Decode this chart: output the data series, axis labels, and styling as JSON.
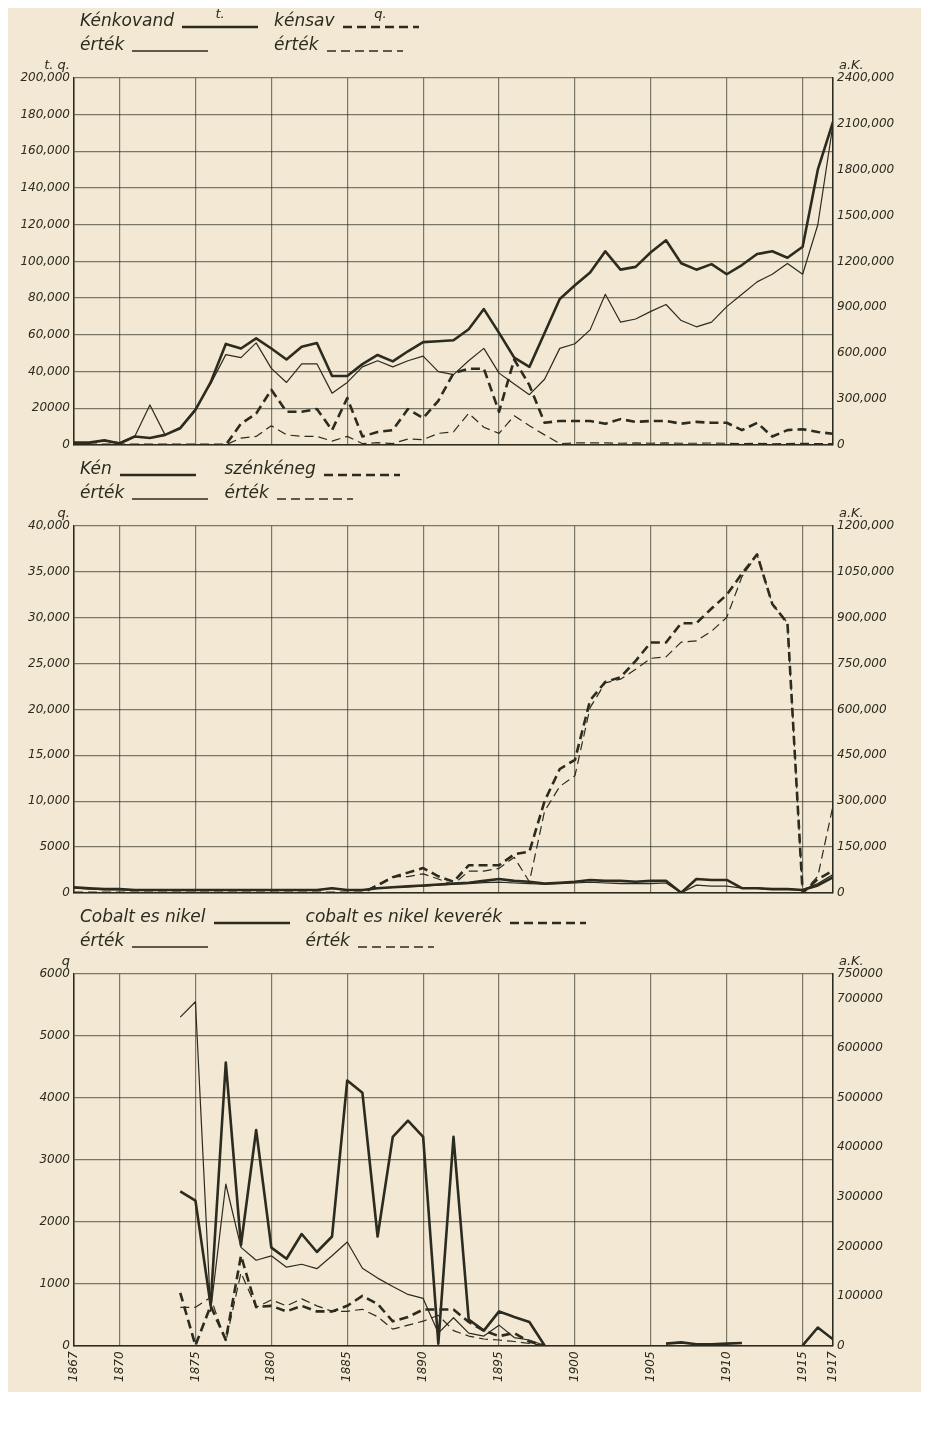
{
  "chart_data": [
    {
      "type": "line",
      "ylabel": "t. q.",
      "y2label": "a.K.",
      "legend": "top left",
      "grid": true,
      "tick_labels": "y",
      "annotations": [
        "t.",
        "q."
      ],
      "x": [
        1867,
        1868,
        1869,
        1870,
        1871,
        1872,
        1873,
        1874,
        1875,
        1876,
        1877,
        1878,
        1879,
        1880,
        1881,
        1882,
        1883,
        1884,
        1885,
        1886,
        1887,
        1888,
        1889,
        1890,
        1891,
        1892,
        1893,
        1894,
        1895,
        1896,
        1897,
        1898,
        1899,
        1900,
        1901,
        1902,
        1903,
        1904,
        1905,
        1906,
        1907,
        1908,
        1909,
        1910,
        1911,
        1912,
        1913,
        1914,
        1915,
        1916,
        1917
      ],
      "xlim": [
        1867,
        1917
      ],
      "xticks": [
        1867,
        1870,
        1875,
        1880,
        1885,
        1890,
        1895,
        1900,
        1905,
        1910,
        1915,
        1917
      ],
      "ylim": [
        0,
        200000
      ],
      "yticks": [
        0,
        20000,
        {
          "value": 40000,
          "label": "40,000"
        },
        {
          "value": 60000,
          "label": "60,000"
        },
        {
          "value": 80000,
          "label": "80,000"
        },
        {
          "value": 100000,
          "label": "100,000"
        },
        {
          "value": 120000,
          "label": "120,000"
        },
        {
          "value": 140000,
          "label": "140,000"
        },
        {
          "value": 160000,
          "label": "160,000"
        },
        {
          "value": 180000,
          "label": "180,000"
        },
        {
          "value": 200000,
          "label": "200,000"
        }
      ],
      "y2lim": [
        0,
        2400000
      ],
      "y2ticks": [
        0,
        {
          "value": 300000,
          "label": "300,000"
        },
        {
          "value": 600000,
          "label": "600,000"
        },
        {
          "value": 900000,
          "label": "900,000"
        },
        {
          "value": 1200000,
          "label": "1200,000"
        },
        {
          "value": 1500000,
          "label": "1500,000"
        },
        {
          "value": 1800000,
          "label": "1800,000"
        },
        {
          "value": 2100000,
          "label": "2100,000"
        },
        {
          "value": 2400000,
          "label": "2400,000"
        }
      ],
      "series": [
        {
          "name": "Kénkovand",
          "color": "#2b2b1f",
          "line_style": "solid",
          "values": [
            1200,
            1200,
            2400,
            700,
            4500,
            3700,
            5400,
            9000,
            19000,
            34000,
            55000,
            52500,
            58000,
            52500,
            46500,
            53500,
            55500,
            37500,
            37500,
            44000,
            49000,
            45500,
            51000,
            56000,
            56500,
            57000,
            63000,
            74000,
            61000,
            47500,
            42500,
            61000,
            79500,
            87000,
            94000,
            105500,
            95500,
            97000,
            105000,
            111500,
            99000,
            95500,
            98500,
            93000,
            98000,
            104000,
            105500,
            102000,
            108000,
            150000,
            176000
          ]
        },
        {
          "name": "érték",
          "color": "#2b2b1f",
          "line_style": "solid",
          "axis": "y2",
          "values": [
            14000,
            14000,
            28000,
            14000,
            55000,
            261000,
            65000,
            115000,
            237000,
            398000,
            590000,
            570000,
            667000,
            500000,
            408000,
            530000,
            530000,
            338000,
            408000,
            510000,
            550000,
            510000,
            550000,
            580000,
            479000,
            459000,
            550000,
            631000,
            469000,
            398000,
            328000,
            429000,
            631000,
            661000,
            752000,
            985000,
            803000,
            823000,
            873000,
            918000,
            813000,
            772000,
            803000,
            904000,
            985000,
            1066000,
            1116000,
            1187000,
            1116000,
            1440000,
            2097000
          ]
        },
        {
          "name": "kénsav",
          "color": "#2b2b1f",
          "line_style": "dashed",
          "values": [
            0,
            0,
            0,
            0,
            0,
            0,
            0,
            0,
            0,
            0,
            0,
            11500,
            17000,
            30000,
            18000,
            18000,
            19500,
            8000,
            25500,
            4500,
            7000,
            8000,
            19500,
            14500,
            24000,
            39000,
            41500,
            41500,
            18000,
            46500,
            32500,
            12000,
            13000,
            13000,
            13000,
            11500,
            14000,
            12500,
            13000,
            13000,
            11500,
            12500,
            12000,
            12000,
            8000,
            12000,
            4500,
            8000,
            8500,
            7000,
            6000
          ]
        },
        {
          "name": "érték",
          "color": "#2b2b1f",
          "line_style": "dashed",
          "axis": "y2",
          "values": [
            0,
            0,
            0,
            0,
            0,
            0,
            0,
            0,
            0,
            0,
            0,
            44000,
            55000,
            125000,
            65000,
            55000,
            55000,
            24000,
            55000,
            8000,
            14000,
            8000,
            38000,
            34000,
            75000,
            85000,
            206000,
            115000,
            75000,
            190000,
            125000,
            65000,
            8000,
            12000,
            12000,
            12000,
            10000,
            12000,
            10000,
            12000,
            10000,
            10000,
            12000,
            10000,
            8000,
            10000,
            6000,
            8000,
            10000,
            8000,
            8000
          ]
        }
      ]
    },
    {
      "type": "line",
      "ylabel": "q.",
      "y2label": "a.K.",
      "legend": "top left",
      "grid": true,
      "tick_labels": "y",
      "x": [
        1867,
        1868,
        1869,
        1870,
        1871,
        1872,
        1873,
        1874,
        1875,
        1876,
        1877,
        1878,
        1879,
        1880,
        1881,
        1882,
        1883,
        1884,
        1885,
        1886,
        1887,
        1888,
        1889,
        1890,
        1891,
        1892,
        1893,
        1894,
        1895,
        1896,
        1897,
        1898,
        1899,
        1900,
        1901,
        1902,
        1903,
        1904,
        1905,
        1906,
        1907,
        1908,
        1909,
        1910,
        1911,
        1912,
        1913,
        1914,
        1915,
        1916,
        1917
      ],
      "xlim": [
        1867,
        1917
      ],
      "xticks": [
        1867,
        1870,
        1875,
        1880,
        1885,
        1890,
        1895,
        1900,
        1905,
        1910,
        1915,
        1917
      ],
      "ylim": [
        0,
        40000
      ],
      "yticks": [
        0,
        5000,
        {
          "value": 10000,
          "label": "10,000"
        },
        {
          "value": 15000,
          "label": "15,000"
        },
        {
          "value": 20000,
          "label": "20,000"
        },
        {
          "value": 25000,
          "label": "25,000"
        },
        {
          "value": 30000,
          "label": "30,000"
        },
        {
          "value": 35000,
          "label": "35,000"
        },
        {
          "value": 40000,
          "label": "40,000"
        }
      ],
      "y2lim": [
        0,
        1200000
      ],
      "y2ticks": [
        0,
        {
          "value": 150000,
          "label": "150,000"
        },
        {
          "value": 300000,
          "label": "300,000"
        },
        {
          "value": 450000,
          "label": "450,000"
        },
        {
          "value": 600000,
          "label": "600,000"
        },
        {
          "value": 750000,
          "label": "750,000"
        },
        {
          "value": 900000,
          "label": "900,000"
        },
        {
          "value": 1050000,
          "label": "1050,000"
        },
        {
          "value": 1200000,
          "label": "1200,000"
        }
      ],
      "series": [
        {
          "name": "Kén",
          "color": "#2b2b1f",
          "line_style": "solid",
          "values": [
            600,
            500,
            400,
            400,
            300,
            300,
            300,
            300,
            300,
            300,
            300,
            300,
            300,
            300,
            300,
            300,
            300,
            500,
            300,
            300,
            500,
            600,
            700,
            800,
            900,
            1000,
            1100,
            1300,
            1500,
            1300,
            1200,
            1000,
            1100,
            1200,
            1400,
            1300,
            1300,
            1200,
            1300,
            1300,
            0,
            1500,
            1400,
            1400,
            500,
            500,
            400,
            400,
            300,
            800,
            1700
          ]
        },
        {
          "name": "érték",
          "color": "#2b2b1f",
          "line_style": "solid",
          "axis": "y2",
          "values": [
            15000,
            12000,
            10000,
            10000,
            8000,
            8000,
            8000,
            8000,
            8000,
            8000,
            8000,
            8000,
            8000,
            8000,
            8000,
            8000,
            8000,
            15000,
            8000,
            8000,
            15000,
            18000,
            20000,
            22000,
            25000,
            28000,
            30000,
            33000,
            35000,
            32000,
            30000,
            28000,
            30000,
            32000,
            35000,
            32000,
            30000,
            30000,
            30000,
            32000,
            0,
            25000,
            22000,
            22000,
            15000,
            15000,
            12000,
            12000,
            10000,
            30000,
            60000
          ]
        },
        {
          "name": "szénkéneg",
          "color": "#2b2b1f",
          "line_style": "dashed",
          "values": [
            0,
            0,
            0,
            0,
            0,
            0,
            0,
            0,
            0,
            0,
            0,
            0,
            0,
            0,
            0,
            0,
            0,
            0,
            0,
            0,
            800,
            1700,
            2200,
            2700,
            1800,
            1200,
            3000,
            3000,
            3000,
            4200,
            4500,
            10000,
            13500,
            14500,
            21000,
            23000,
            23500,
            25300,
            27300,
            27300,
            29400,
            29400,
            31000,
            32500,
            34800,
            36900,
            31500,
            29400,
            0,
            1500,
            2400
          ]
        },
        {
          "name": "érték",
          "color": "#2b2b1f",
          "line_style": "dashed",
          "axis": "y2",
          "values": [
            0,
            0,
            0,
            0,
            0,
            0,
            0,
            0,
            0,
            0,
            0,
            0,
            0,
            0,
            0,
            0,
            0,
            0,
            0,
            0,
            27000,
            53000,
            53000,
            62000,
            45000,
            27000,
            71000,
            71000,
            80000,
            116000,
            36000,
            267000,
            348000,
            383000,
            606000,
            687000,
            699000,
            731000,
            767000,
            772000,
            820000,
            824000,
            856000,
            901000,
            1034000,
            1106000,
            945000,
            883000,
            0,
            54000,
            285000
          ]
        }
      ]
    },
    {
      "type": "line",
      "ylabel": "q",
      "y2label": "a.K.",
      "legend": "top left",
      "grid": true,
      "x": [
        1874,
        1875,
        1876,
        1877,
        1878,
        1879,
        1880,
        1881,
        1882,
        1883,
        1884,
        1885,
        1886,
        1887,
        1888,
        1889,
        1890,
        1891,
        1892,
        1893,
        1894,
        1895,
        1896,
        1897,
        1898,
        1899,
        1900,
        1901,
        1902,
        1903,
        1904,
        1905,
        1906,
        1907,
        1908,
        1909,
        1910,
        1911,
        1912,
        1913,
        1914,
        1915,
        1916,
        1917
      ],
      "xlim": [
        1867,
        1917
      ],
      "xticks": [
        1867,
        1870,
        1875,
        1880,
        1885,
        1890,
        1895,
        1900,
        1905,
        1910,
        1915,
        1917
      ],
      "ylim": [
        0,
        6000
      ],
      "yticks": [
        0,
        1000,
        2000,
        3000,
        4000,
        5000,
        6000
      ],
      "y2lim": [
        0,
        750000
      ],
      "y2ticks": [
        0,
        100000,
        200000,
        300000,
        400000,
        500000,
        600000,
        700000,
        750000
      ],
      "series": [
        {
          "name": "Cobalt es nikel",
          "color": "#2b2b1f",
          "line_style": "solid",
          "values": [
            2490,
            2340,
            650,
            4570,
            1620,
            3480,
            1580,
            1400,
            1800,
            1510,
            1760,
            4280,
            4080,
            1760,
            3370,
            3630,
            3370,
            30,
            3370,
            420,
            240,
            550,
            460,
            380,
            0,
            null,
            null,
            null,
            null,
            null,
            null,
            null,
            30,
            50,
            20,
            20,
            30,
            40,
            null,
            null,
            null,
            0,
            290,
            100
          ]
        },
        {
          "name": "érték",
          "color": "#2b2b1f",
          "line_style": "solid",
          "axis": "y2",
          "values": [
            663000,
            694000,
            69000,
            326000,
            198000,
            172000,
            181000,
            158000,
            164000,
            155000,
            181000,
            209000,
            156000,
            136000,
            119000,
            103000,
            95000,
            25000,
            56000,
            25000,
            19000,
            41000,
            16000,
            11000,
            0,
            null,
            null,
            null,
            null,
            null,
            null,
            null,
            null,
            null,
            null,
            null,
            null,
            null,
            null,
            null,
            null,
            null,
            null,
            null
          ]
        },
        {
          "name": "cobalt es nikel keverék",
          "color": "#2b2b1f",
          "line_style": "dashed",
          "values": [
            850,
            0,
            640,
            90,
            1450,
            620,
            640,
            550,
            640,
            550,
            550,
            640,
            800,
            670,
            390,
            460,
            580,
            580,
            580,
            380,
            240,
            150,
            200,
            60,
            0,
            null,
            null,
            null,
            null,
            null,
            null,
            null,
            null,
            null,
            null,
            null,
            null,
            null,
            null,
            null,
            null,
            null,
            null,
            null
          ]
        },
        {
          "name": "érték",
          "color": "#2b2b1f",
          "line_style": "dashed",
          "axis": "y2",
          "values": [
            77000,
            77000,
            97000,
            8000,
            147000,
            77000,
            92000,
            80000,
            94000,
            80000,
            69000,
            69000,
            73000,
            58000,
            33000,
            41000,
            49000,
            61000,
            30000,
            19000,
            13000,
            11000,
            8000,
            4000,
            0,
            null,
            null,
            null,
            null,
            null,
            null,
            null,
            null,
            null,
            null,
            null,
            null,
            null,
            null,
            null,
            null,
            null,
            null,
            null
          ]
        }
      ]
    }
  ]
}
